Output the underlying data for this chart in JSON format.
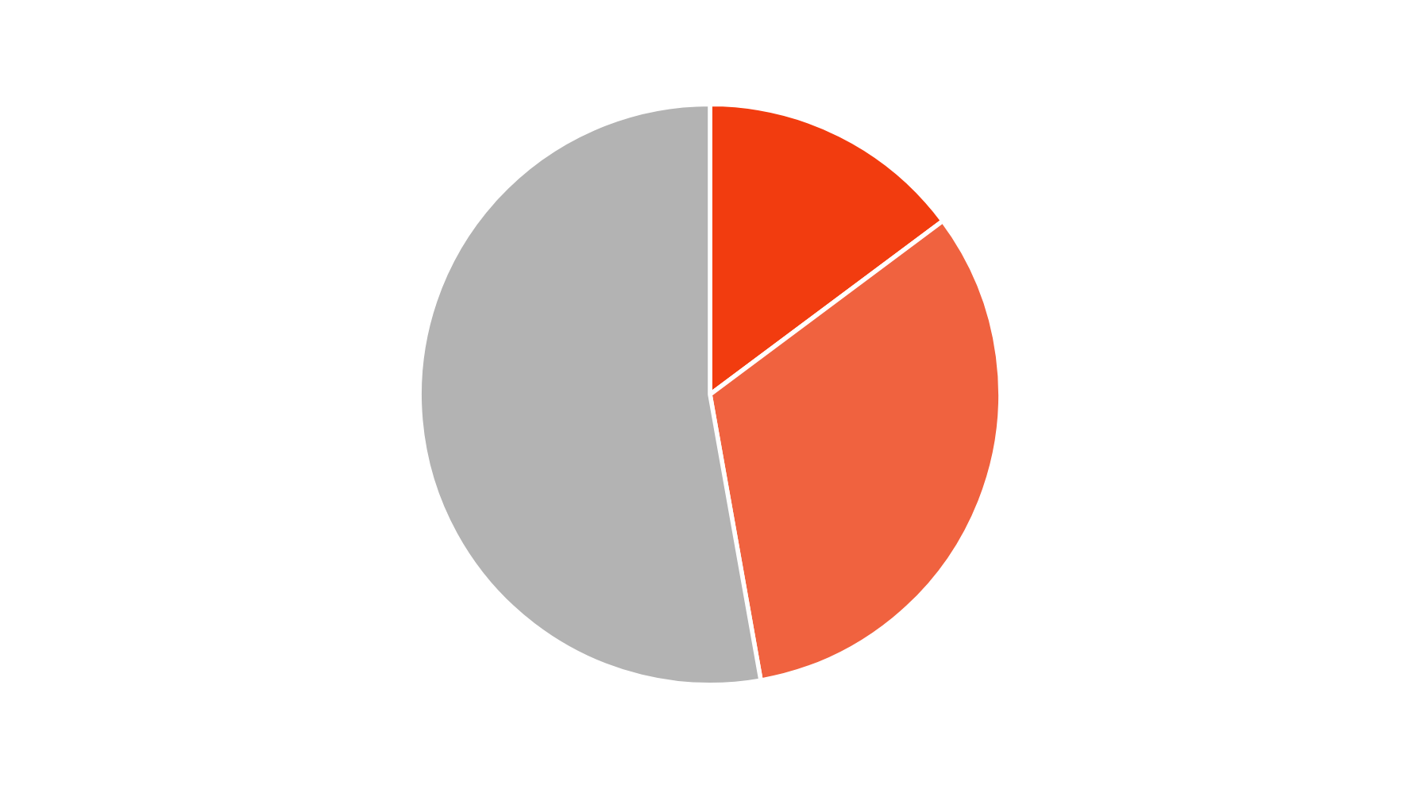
{
  "chart_data": {
    "type": "pie",
    "categories": [
      null,
      null,
      null
    ],
    "values": [
      14.8,
      32.4,
      52.8
    ],
    "colors": [
      "#f23c0f",
      "#f0623f",
      "#b3b3b3"
    ]
  }
}
